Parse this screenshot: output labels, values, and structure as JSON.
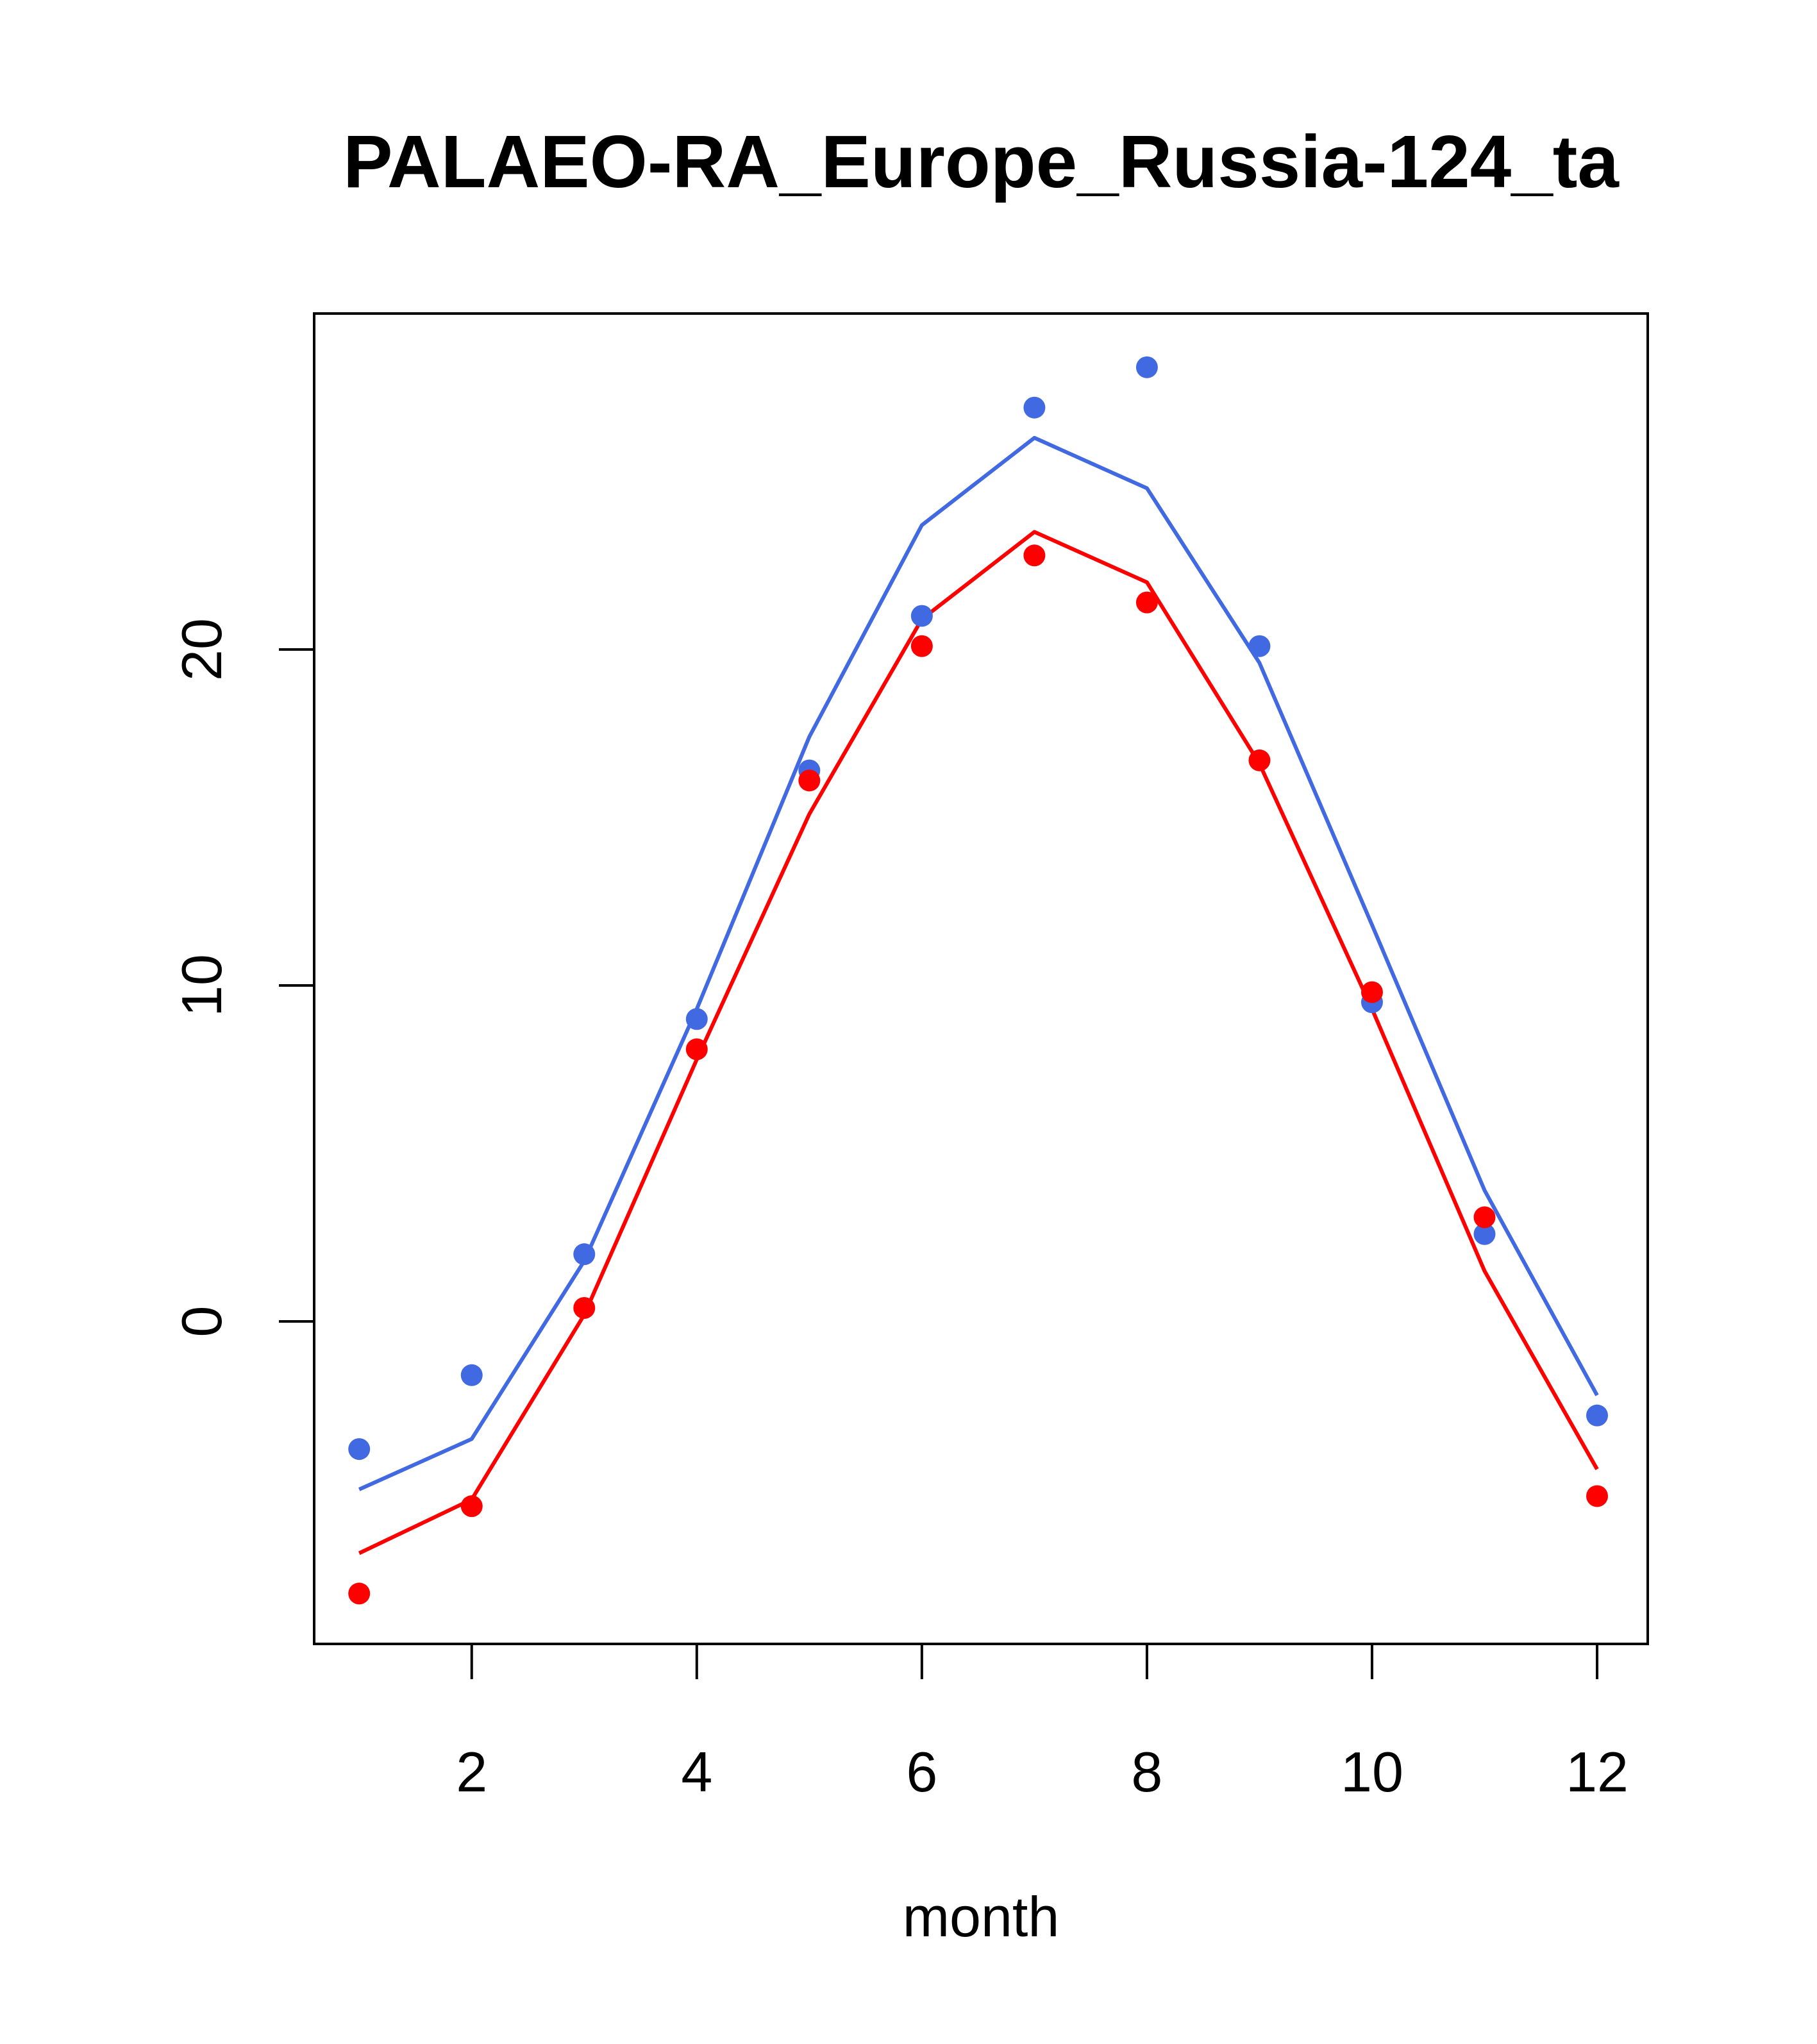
{
  "chart_data": {
    "type": "line",
    "title": "PALAEO-RA_Europe_Russia-124_ta",
    "xlabel": "month",
    "ylabel": "",
    "xlim": [
      0.6,
      12.45
    ],
    "ylim": [
      -9.6,
      30.0
    ],
    "x_ticks": [
      2,
      4,
      6,
      8,
      10,
      12
    ],
    "y_ticks": [
      0,
      10,
      20
    ],
    "x": [
      1,
      2,
      3,
      4,
      5,
      6,
      7,
      8,
      9,
      10,
      11,
      12
    ],
    "grid": false,
    "legend": "none",
    "series": [
      {
        "color": "#4169E1",
        "line": [
          -5.0,
          -3.5,
          1.8,
          9.3,
          17.4,
          23.7,
          26.3,
          24.8,
          19.6,
          11.8,
          3.9,
          -2.2
        ],
        "points": [
          -3.8,
          -1.6,
          2.0,
          9.0,
          16.4,
          21.0,
          27.2,
          28.4,
          20.1,
          9.5,
          2.6,
          -2.8
        ]
      },
      {
        "color": "#FF0000",
        "line": [
          -6.9,
          -5.3,
          0.2,
          7.8,
          15.1,
          20.9,
          23.5,
          22.0,
          16.6,
          9.3,
          1.5,
          -4.4
        ],
        "points": [
          -8.1,
          -5.5,
          0.4,
          8.1,
          16.1,
          20.1,
          22.8,
          21.4,
          16.7,
          9.8,
          3.1,
          -5.2
        ]
      }
    ]
  }
}
